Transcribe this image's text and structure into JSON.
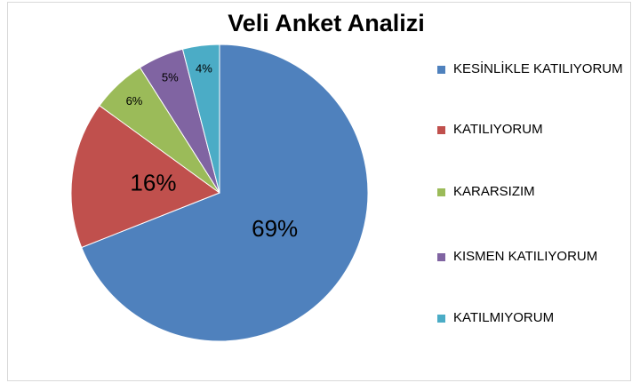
{
  "chart_data": {
    "type": "pie",
    "title": "Veli Anket Analizi",
    "categories": [
      "KESİNLİKLE KATILIYORUM",
      "KATILIYORUM",
      "KARARSIZIM",
      "KISMEN KATILIYORUM",
      "KATILMIYORUM"
    ],
    "values": [
      69,
      16,
      6,
      5,
      4
    ],
    "value_labels": [
      "69%",
      "16%",
      "6%",
      "5%",
      "4%"
    ],
    "colors": [
      "#4f81bd",
      "#c0504d",
      "#9bbb59",
      "#8064a2",
      "#4bacc6"
    ],
    "legend": "right"
  }
}
